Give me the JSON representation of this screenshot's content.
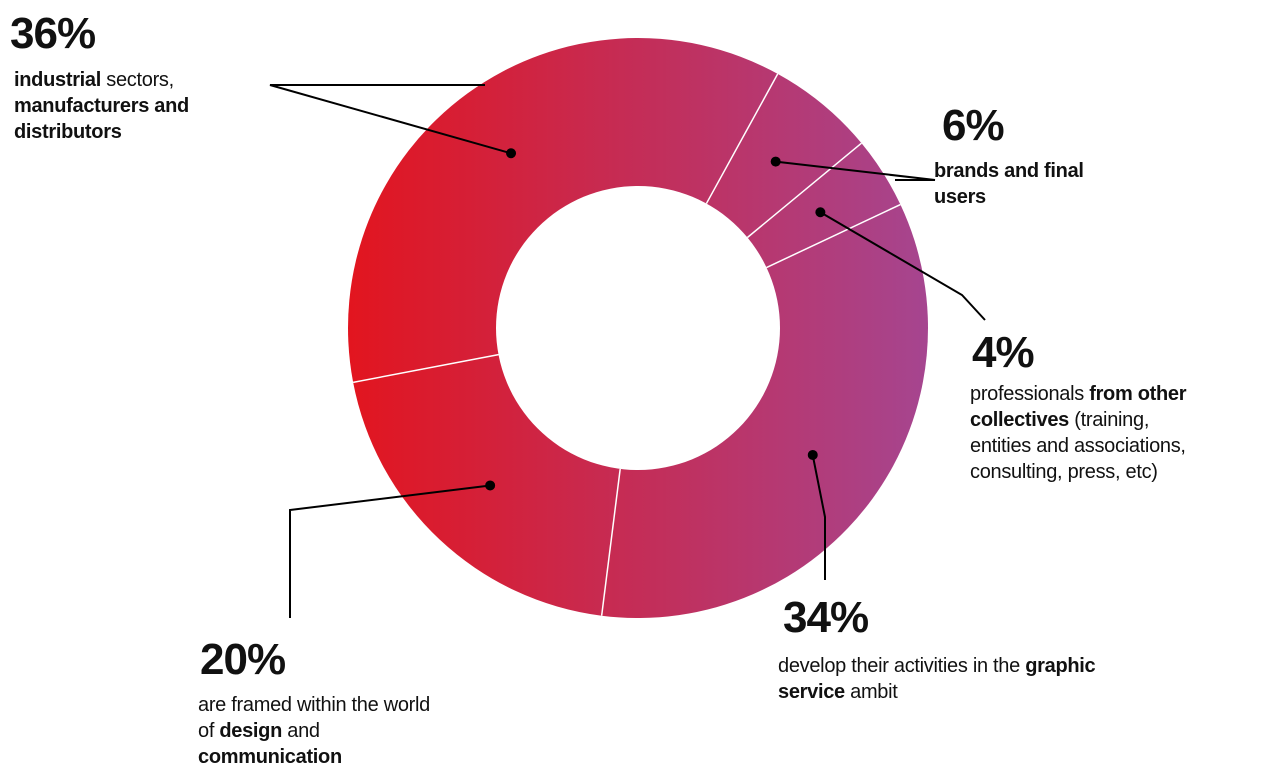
{
  "colors": {
    "gradient_start": "#e2151f",
    "gradient_end": "#a6458f",
    "text": "#111111",
    "leader": "#000000",
    "separator": "#ffffff"
  },
  "chart_data": {
    "type": "pie",
    "subtype": "donut",
    "slices": [
      {
        "value": 36,
        "label": "36%",
        "parts": [
          {
            "t": "industrial",
            "b": true
          },
          {
            "t": " sectors,",
            "b": false
          },
          {
            "br": true
          },
          {
            "t": "manufacturers and",
            "b": true
          },
          {
            "br": true
          },
          {
            "t": "distributors",
            "b": true
          }
        ]
      },
      {
        "value": 6,
        "label": "6%",
        "parts": [
          {
            "t": "brands and final",
            "b": true
          },
          {
            "br": true
          },
          {
            "t": "users",
            "b": true
          }
        ]
      },
      {
        "value": 4,
        "label": "4%",
        "parts": [
          {
            "t": "professionals ",
            "b": false
          },
          {
            "t": "from other",
            "b": true
          },
          {
            "br": true
          },
          {
            "t": "collectives",
            "b": true
          },
          {
            "t": " (training,",
            "b": false
          },
          {
            "br": true
          },
          {
            "t": "entities and associations,",
            "b": false
          },
          {
            "br": true
          },
          {
            "t": "consulting, press, etc)",
            "b": false
          }
        ]
      },
      {
        "value": 34,
        "label": "34%",
        "parts": [
          {
            "t": "develop their activities in the ",
            "b": false
          },
          {
            "t": "graphic",
            "b": true
          },
          {
            "br": true
          },
          {
            "t": "service",
            "b": true
          },
          {
            "t": " ambit",
            "b": false
          }
        ]
      },
      {
        "value": 20,
        "label": "20%",
        "parts": [
          {
            "t": "are framed within the world",
            "b": false
          },
          {
            "br": true
          },
          {
            "t": "of ",
            "b": false
          },
          {
            "t": "design",
            "b": true
          },
          {
            "t": " and",
            "b": false
          },
          {
            "br": true
          },
          {
            "t": "communication",
            "b": true
          }
        ]
      }
    ]
  }
}
